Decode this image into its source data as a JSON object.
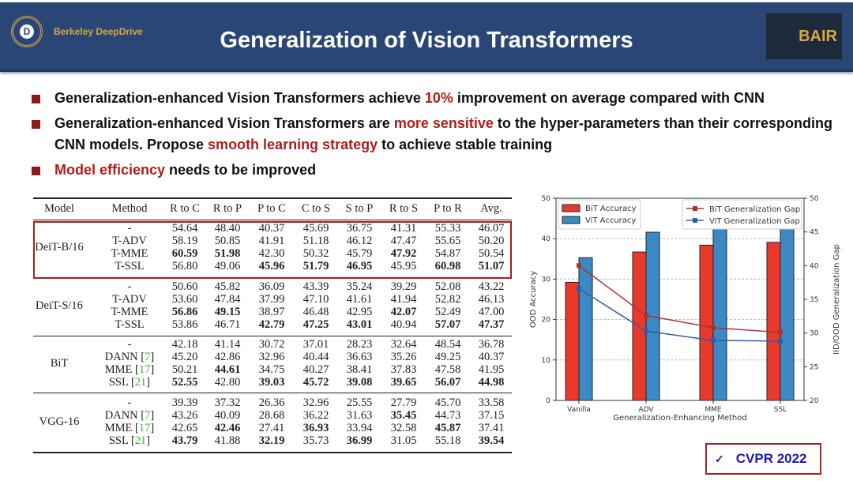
{
  "header": {
    "title": "Generalization of Vision Transformers",
    "left_logo_text": "Berkeley DeepDrive",
    "right_logo_text": "BAIR"
  },
  "bullets": [
    [
      {
        "t": "Generalization-enhanced Vision Transformers achieve "
      },
      {
        "t": "10%",
        "hl": true
      },
      {
        "t": " improvement on average compared with CNN"
      }
    ],
    [
      {
        "t": "Generalization-enhanced Vision Transformers are "
      },
      {
        "t": "more sensitive",
        "hl": true
      },
      {
        "t": " to the hyper-parameters than their corresponding CNN models. Propose "
      },
      {
        "t": "smooth learning strategy",
        "hl": true
      },
      {
        "t": " to achieve stable training"
      }
    ],
    [
      {
        "t": "Model efficiency",
        "hl": true
      },
      {
        "t": " needs to be improved"
      }
    ]
  ],
  "table": {
    "headers": [
      "Model",
      "Method",
      "R to C",
      "R to P",
      "P to C",
      "C to S",
      "S to P",
      "R to S",
      "P to R",
      "Avg."
    ],
    "groups": [
      {
        "model": "DeiT-B/16",
        "highlighted": true,
        "rows": [
          {
            "method": "-",
            "values": [
              "54.64",
              "48.40",
              "40.37",
              "45.69",
              "36.75",
              "41.31",
              "55.33",
              "46.07"
            ],
            "bold": []
          },
          {
            "method": "T-ADV",
            "values": [
              "58.19",
              "50.85",
              "41.91",
              "51.18",
              "46.12",
              "47.47",
              "55.65",
              "50.20"
            ],
            "bold": []
          },
          {
            "method": "T-MME",
            "values": [
              "60.59",
              "51.98",
              "42.30",
              "50.32",
              "45.79",
              "47.92",
              "54.87",
              "50.54"
            ],
            "bold": [
              0,
              1,
              5
            ]
          },
          {
            "method": "T-SSL",
            "values": [
              "56.80",
              "49.06",
              "45.96",
              "51.79",
              "46.95",
              "45.95",
              "60.98",
              "51.07"
            ],
            "bold": [
              2,
              3,
              4,
              6,
              7
            ]
          }
        ]
      },
      {
        "model": "DeiT-S/16",
        "rows": [
          {
            "method": "-",
            "values": [
              "50.60",
              "45.82",
              "36.09",
              "43.39",
              "35.24",
              "39.29",
              "52.08",
              "43.22"
            ],
            "bold": []
          },
          {
            "method": "T-ADV",
            "values": [
              "53.60",
              "47.84",
              "37.99",
              "47.10",
              "41.61",
              "41.94",
              "52.82",
              "46.13"
            ],
            "bold": []
          },
          {
            "method": "T-MME",
            "values": [
              "56.86",
              "49.15",
              "38.97",
              "46.48",
              "42.95",
              "42.07",
              "52.49",
              "47.00"
            ],
            "bold": [
              0,
              1,
              5
            ]
          },
          {
            "method": "T-SSL",
            "values": [
              "53.86",
              "46.71",
              "42.79",
              "47.25",
              "43.01",
              "40.94",
              "57.07",
              "47.37"
            ],
            "bold": [
              2,
              3,
              4,
              6,
              7
            ]
          }
        ]
      },
      {
        "model": "BiT",
        "rows": [
          {
            "method": "-",
            "values": [
              "42.18",
              "41.14",
              "30.72",
              "37.01",
              "28.23",
              "32.64",
              "48.54",
              "36.78"
            ],
            "bold": []
          },
          {
            "method": "DANN",
            "ref": "7",
            "values": [
              "45.20",
              "42.86",
              "32.96",
              "40.44",
              "36.63",
              "35.26",
              "49.25",
              "40.37"
            ],
            "bold": []
          },
          {
            "method": "MME",
            "ref": "17",
            "values": [
              "50.21",
              "44.61",
              "34.75",
              "40.27",
              "38.41",
              "37.83",
              "47.58",
              "41.95"
            ],
            "bold": [
              1
            ]
          },
          {
            "method": "SSL",
            "ref": "21",
            "values": [
              "52.55",
              "42.80",
              "39.03",
              "45.72",
              "39.08",
              "39.65",
              "56.07",
              "44.98"
            ],
            "bold": [
              0,
              2,
              3,
              4,
              5,
              6,
              7
            ]
          }
        ]
      },
      {
        "model": "VGG-16",
        "rows": [
          {
            "method": "-",
            "values": [
              "39.39",
              "37.32",
              "26.36",
              "32.96",
              "25.55",
              "27.79",
              "45.70",
              "33.58"
            ],
            "bold": []
          },
          {
            "method": "DANN",
            "ref": "7",
            "values": [
              "43.26",
              "40.09",
              "28.68",
              "36.22",
              "31.63",
              "35.45",
              "44.73",
              "37.15"
            ],
            "bold": [
              5
            ]
          },
          {
            "method": "MME",
            "ref": "17",
            "values": [
              "42.65",
              "42.46",
              "27.41",
              "36.93",
              "33.94",
              "32.58",
              "45.87",
              "37.41"
            ],
            "bold": [
              1,
              3,
              6
            ]
          },
          {
            "method": "SSL",
            "ref": "21",
            "values": [
              "43.79",
              "41.88",
              "32.19",
              "35.73",
              "36.99",
              "31.05",
              "55.18",
              "39.54"
            ],
            "bold": [
              0,
              2,
              4,
              7
            ]
          }
        ]
      }
    ]
  },
  "chart_data": {
    "type": "bar",
    "categories": [
      "Vanilla",
      "ADV",
      "MME",
      "SSL"
    ],
    "xlabel": "Generalization-Enhancing Method",
    "ylabel": "OOD Accuracy",
    "y2label": "IID/OOD Generalization Gap",
    "ylim": [
      0,
      50
    ],
    "y2lim": [
      20,
      50
    ],
    "yticks": [
      "0",
      "10",
      "20",
      "30",
      "40",
      "50"
    ],
    "y2ticks": [
      "20",
      "25",
      "30",
      "35",
      "40",
      "45",
      "50"
    ],
    "grid": true,
    "bar_series": [
      {
        "name": "BiT Accuracy",
        "color": "#e8392b",
        "values": [
          29.2,
          36.7,
          38.4,
          39.1
        ]
      },
      {
        "name": "ViT Accuracy",
        "color": "#3b8ac6",
        "values": [
          35.3,
          41.6,
          45.0,
          47.4
        ]
      }
    ],
    "line_series": [
      {
        "name": "BiT Generalization Gap",
        "color": "#b03030",
        "values": [
          40.0,
          32.6,
          30.8,
          30.1
        ]
      },
      {
        "name": "ViT Generalization Gap",
        "color": "#2f5fa8",
        "values": [
          36.6,
          30.3,
          28.9,
          28.8
        ]
      }
    ],
    "legend": [
      "top-left",
      "top-right"
    ]
  },
  "badge": {
    "check": "✓",
    "label": "CVPR 2022"
  }
}
